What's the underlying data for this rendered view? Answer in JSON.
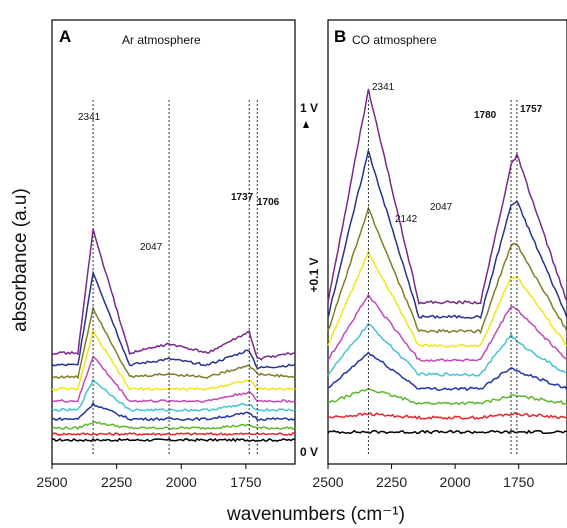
{
  "chart_data": [
    {
      "type": "line",
      "panel": "A",
      "title": "Ar atmosphere",
      "xlabel": "wavenumbers (cm⁻¹)",
      "ylabel": "absorbance (a.u)",
      "x_ticks": [
        2500,
        2250,
        2000,
        1750
      ],
      "xlim": [
        2500,
        1560
      ],
      "x_reversed": true,
      "annotations": [
        "2341",
        "2047",
        "1737",
        "1706"
      ],
      "peak_markers": [
        2341,
        2047,
        1737,
        1706
      ],
      "series": [
        {
          "values": [
            [
              2500,
              0
            ],
            [
              2400,
              0
            ],
            [
              2341,
              0
            ],
            [
              2200,
              0
            ],
            [
              2047,
              0
            ],
            [
              1900,
              0
            ],
            [
              1737,
              0
            ],
            [
              1706,
              0
            ],
            [
              1560,
              0
            ]
          ],
          "color": "#000000"
        },
        {
          "values": [
            [
              2500,
              0.02
            ],
            [
              2400,
              0.02
            ],
            [
              2341,
              0.02
            ],
            [
              2200,
              0.02
            ],
            [
              2047,
              0.02
            ],
            [
              1900,
              0.02
            ],
            [
              1737,
              0.02
            ],
            [
              1706,
              0.02
            ],
            [
              1560,
              0.02
            ]
          ],
          "color": "#e8262d"
        },
        {
          "values": [
            [
              2500,
              0.04
            ],
            [
              2400,
              0.04
            ],
            [
              2341,
              0.06
            ],
            [
              2200,
              0.04
            ],
            [
              2047,
              0.04
            ],
            [
              1900,
              0.04
            ],
            [
              1737,
              0.05
            ],
            [
              1706,
              0.04
            ],
            [
              1560,
              0.04
            ]
          ],
          "color": "#5cb82e"
        },
        {
          "values": [
            [
              2500,
              0.07
            ],
            [
              2400,
              0.07
            ],
            [
              2341,
              0.12
            ],
            [
              2200,
              0.07
            ],
            [
              2047,
              0.07
            ],
            [
              1900,
              0.07
            ],
            [
              1737,
              0.09
            ],
            [
              1706,
              0.07
            ],
            [
              1560,
              0.07
            ]
          ],
          "color": "#2234a8"
        },
        {
          "values": [
            [
              2500,
              0.1
            ],
            [
              2400,
              0.1
            ],
            [
              2341,
              0.2
            ],
            [
              2200,
              0.1
            ],
            [
              2047,
              0.1
            ],
            [
              1900,
              0.1
            ],
            [
              1737,
              0.12
            ],
            [
              1706,
              0.1
            ],
            [
              1560,
              0.1
            ]
          ],
          "color": "#45c4d4"
        },
        {
          "values": [
            [
              2500,
              0.13
            ],
            [
              2400,
              0.13
            ],
            [
              2341,
              0.28
            ],
            [
              2200,
              0.13
            ],
            [
              2047,
              0.13
            ],
            [
              1900,
              0.13
            ],
            [
              1737,
              0.16
            ],
            [
              1706,
              0.13
            ],
            [
              1560,
              0.13
            ]
          ],
          "color": "#c24ab8"
        },
        {
          "values": [
            [
              2500,
              0.17
            ],
            [
              2400,
              0.17
            ],
            [
              2341,
              0.36
            ],
            [
              2200,
              0.17
            ],
            [
              2047,
              0.17
            ],
            [
              1900,
              0.17
            ],
            [
              1737,
              0.2
            ],
            [
              1706,
              0.17
            ],
            [
              1560,
              0.17
            ]
          ],
          "color": "#f0e61c"
        },
        {
          "values": [
            [
              2500,
              0.21
            ],
            [
              2400,
              0.21
            ],
            [
              2341,
              0.44
            ],
            [
              2200,
              0.21
            ],
            [
              2047,
              0.22
            ],
            [
              1900,
              0.21
            ],
            [
              1737,
              0.25
            ],
            [
              1706,
              0.22
            ],
            [
              1560,
              0.21
            ]
          ],
          "color": "#7f7f2a"
        },
        {
          "values": [
            [
              2500,
              0.25
            ],
            [
              2400,
              0.25
            ],
            [
              2341,
              0.56
            ],
            [
              2200,
              0.25
            ],
            [
              2047,
              0.27
            ],
            [
              1900,
              0.25
            ],
            [
              1737,
              0.3
            ],
            [
              1706,
              0.24
            ],
            [
              1560,
              0.25
            ]
          ],
          "color": "#28348a"
        },
        {
          "values": [
            [
              2500,
              0.29
            ],
            [
              2400,
              0.29
            ],
            [
              2341,
              0.7
            ],
            [
              2200,
              0.29
            ],
            [
              2047,
              0.32
            ],
            [
              1900,
              0.29
            ],
            [
              1737,
              0.36
            ],
            [
              1706,
              0.27
            ],
            [
              1560,
              0.29
            ]
          ],
          "color": "#7a2a8a"
        }
      ]
    },
    {
      "type": "line",
      "panel": "B",
      "title": "CO atmosphere",
      "xlabel": "wavenumbers (cm⁻¹)",
      "x_ticks": [
        2500,
        2250,
        2000,
        1750
      ],
      "xlim": [
        2500,
        1560
      ],
      "x_reversed": true,
      "annotations": [
        "2341",
        "2142",
        "2047",
        "1780",
        "1757"
      ],
      "peak_markers": [
        2341,
        1780,
        1757
      ],
      "voltage_labels": [
        "1 V",
        "+0.1 V",
        "0 V"
      ],
      "series": [
        {
          "values": [
            [
              2500,
              0
            ],
            [
              2341,
              0
            ],
            [
              2142,
              0
            ],
            [
              2047,
              0
            ],
            [
              1900,
              0
            ],
            [
              1780,
              0
            ],
            [
              1757,
              0
            ],
            [
              1560,
              0
            ]
          ],
          "color": "#000000"
        },
        {
          "values": [
            [
              2500,
              0.04
            ],
            [
              2341,
              0.05
            ],
            [
              2142,
              0.04
            ],
            [
              2047,
              0.04
            ],
            [
              1900,
              0.04
            ],
            [
              1780,
              0.05
            ],
            [
              1757,
              0.05
            ],
            [
              1560,
              0.04
            ]
          ],
          "color": "#e8262d"
        },
        {
          "values": [
            [
              2500,
              0.08
            ],
            [
              2341,
              0.12
            ],
            [
              2142,
              0.08
            ],
            [
              2047,
              0.08
            ],
            [
              1900,
              0.08
            ],
            [
              1780,
              0.1
            ],
            [
              1757,
              0.1
            ],
            [
              1560,
              0.08
            ]
          ],
          "color": "#5cb82e"
        },
        {
          "values": [
            [
              2500,
              0.12
            ],
            [
              2341,
              0.22
            ],
            [
              2142,
              0.12
            ],
            [
              2047,
              0.12
            ],
            [
              1900,
              0.12
            ],
            [
              1780,
              0.18
            ],
            [
              1757,
              0.17
            ],
            [
              1560,
              0.12
            ]
          ],
          "color": "#2234a8"
        },
        {
          "values": [
            [
              2500,
              0.16
            ],
            [
              2341,
              0.3
            ],
            [
              2142,
              0.16
            ],
            [
              2047,
              0.16
            ],
            [
              1900,
              0.16
            ],
            [
              1780,
              0.27
            ],
            [
              1757,
              0.25
            ],
            [
              1560,
              0.16
            ]
          ],
          "color": "#45c4d4"
        },
        {
          "values": [
            [
              2500,
              0.2
            ],
            [
              2341,
              0.38
            ],
            [
              2142,
              0.2
            ],
            [
              2047,
              0.2
            ],
            [
              1900,
              0.2
            ],
            [
              1780,
              0.35
            ],
            [
              1757,
              0.34
            ],
            [
              1560,
              0.2
            ]
          ],
          "color": "#c24ab8"
        },
        {
          "values": [
            [
              2500,
              0.24
            ],
            [
              2341,
              0.5
            ],
            [
              2142,
              0.24
            ],
            [
              2047,
              0.24
            ],
            [
              1900,
              0.24
            ],
            [
              1780,
              0.43
            ],
            [
              1757,
              0.43
            ],
            [
              1560,
              0.24
            ]
          ],
          "color": "#f0e61c"
        },
        {
          "values": [
            [
              2500,
              0.28
            ],
            [
              2341,
              0.62
            ],
            [
              2142,
              0.28
            ],
            [
              2047,
              0.28
            ],
            [
              1900,
              0.28
            ],
            [
              1780,
              0.52
            ],
            [
              1757,
              0.52
            ],
            [
              1560,
              0.28
            ]
          ],
          "color": "#7f7f2a"
        },
        {
          "values": [
            [
              2500,
              0.32
            ],
            [
              2341,
              0.78
            ],
            [
              2142,
              0.32
            ],
            [
              2047,
              0.32
            ],
            [
              1900,
              0.32
            ],
            [
              1780,
              0.63
            ],
            [
              1757,
              0.64
            ],
            [
              1560,
              0.32
            ]
          ],
          "color": "#28348a"
        },
        {
          "values": [
            [
              2500,
              0.36
            ],
            [
              2341,
              0.95
            ],
            [
              2142,
              0.36
            ],
            [
              2047,
              0.36
            ],
            [
              1900,
              0.36
            ],
            [
              1780,
              0.74
            ],
            [
              1757,
              0.77
            ],
            [
              1560,
              0.36
            ]
          ],
          "color": "#7a2a8a"
        }
      ]
    }
  ]
}
